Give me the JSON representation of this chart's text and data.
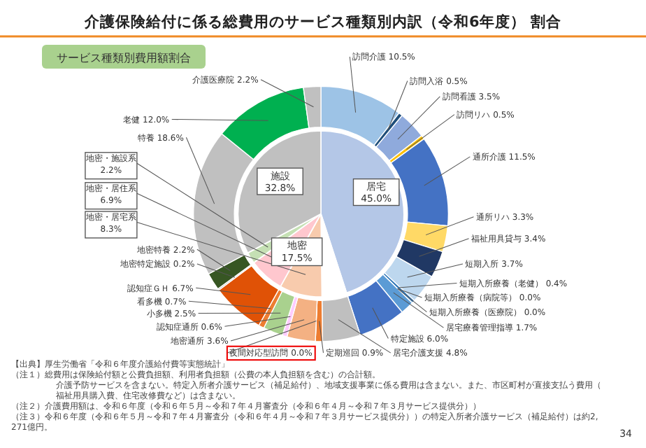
{
  "chart_data": [
    {
      "type": "donut",
      "title": "介護保険給付に係る総費用のサービス種類別内訳（令和6年度） 割合",
      "subtitle": "サービス種類別費用額割合",
      "categories": [
        "訪問介護",
        "訪問入浴",
        "訪問看護",
        "訪問リハ",
        "通所介護",
        "通所リハ",
        "福祉用具貸与",
        "短期入所",
        "短期入所療養（老健）",
        "短期入所療養（病院等）",
        "短期入所療養（医療院）",
        "居宅療養管理指導",
        "特定施設",
        "居宅介護支援",
        "定期巡回",
        "夜間対応型訪問",
        "地密通所",
        "認知症通所",
        "小多機",
        "看多機",
        "認知症ＧＨ",
        "地密特定施設",
        "地密特養",
        "特養",
        "老健",
        "介護医療院"
      ],
      "values": [
        10.5,
        0.5,
        3.5,
        0.5,
        11.5,
        3.3,
        3.4,
        3.7,
        0.4,
        0.0,
        0.0,
        1.7,
        6.0,
        4.8,
        0.9,
        0.0,
        3.6,
        0.6,
        2.5,
        0.7,
        6.7,
        0.2,
        2.2,
        18.6,
        12.0,
        2.2
      ],
      "value_labels": [
        "10.5%",
        "0.5%",
        "3.5%",
        "0.5%",
        "11.5%",
        "3.3%",
        "3.4%",
        "3.7%",
        "0.4%",
        "0.0%",
        "0.0%",
        "1.7%",
        "6.0%",
        "4.8%",
        "0.9%",
        "0.0%",
        "3.6%",
        "0.6%",
        "2.5%",
        "0.7%",
        "6.7%",
        "0.2%",
        "2.2%",
        "18.6%",
        "12.0%",
        "2.2%"
      ],
      "colors": [
        "#9dc3e6",
        "#1f4e79",
        "#8faadc",
        "#ffc000",
        "#4472c4",
        "#ffd966",
        "#203864",
        "#bdd7ee",
        "#2e75b6",
        "#5b9bd5",
        "#2f5597",
        "#5b9bd5",
        "#4472c4",
        "#bfbfbf",
        "#ed7d31",
        "#f4b183",
        "#f4b183",
        "#ffccff",
        "#a9d18e",
        "#ed7d31",
        "#e05206",
        "#bfbfbf",
        "#375623",
        "#c0c0c0",
        "#00b050",
        "#c0c0c0"
      ],
      "annotations": [
        "【出典】厚生労働省「令和６年度介護給付費等実態統計」",
        "（注１）総費用は保険給付額と公費負担額、利用者負担額（公費の本人負担額を含む）の合計額。",
        "介護予防サービスを含まない。特定入所者介護サービス（補足給付）、地域支援事業に係る費用は含まない。また、市区町村が直接支払う費用（福祉用具購入費、住宅改修費など）は含まない。",
        "（注２）介護費用額は、令和６年度（令和６年５月～令和７年４月審査分（令和６年４月～令和７年３月サービス提供分））",
        "（注３）令和６年度（令和６年５月～令和７年４月審査分（令和６年４月～令和７年３月サービス提供分））の特定入所者介護サービス（補足給付）は約2,271億円。",
        "34"
      ]
    },
    {
      "type": "pie",
      "categories": [
        "居宅",
        null,
        "地密・居宅系",
        "地密・居住系",
        "地密・施設系",
        "施設"
      ],
      "values": [
        45.0,
        4.8,
        8.3,
        6.9,
        2.2,
        32.8
      ],
      "value_labels": [
        "45.0%",
        null,
        "8.3%",
        "6.9%",
        "2.2%",
        "32.8%"
      ],
      "colors": [
        "#b4c7e7",
        "#ffffff",
        "#f8cbad",
        "#ffc7ce",
        "#c5e0b4",
        "#c0c0c0"
      ],
      "annotations": [
        "地密\n17.5%"
      ]
    }
  ]
}
